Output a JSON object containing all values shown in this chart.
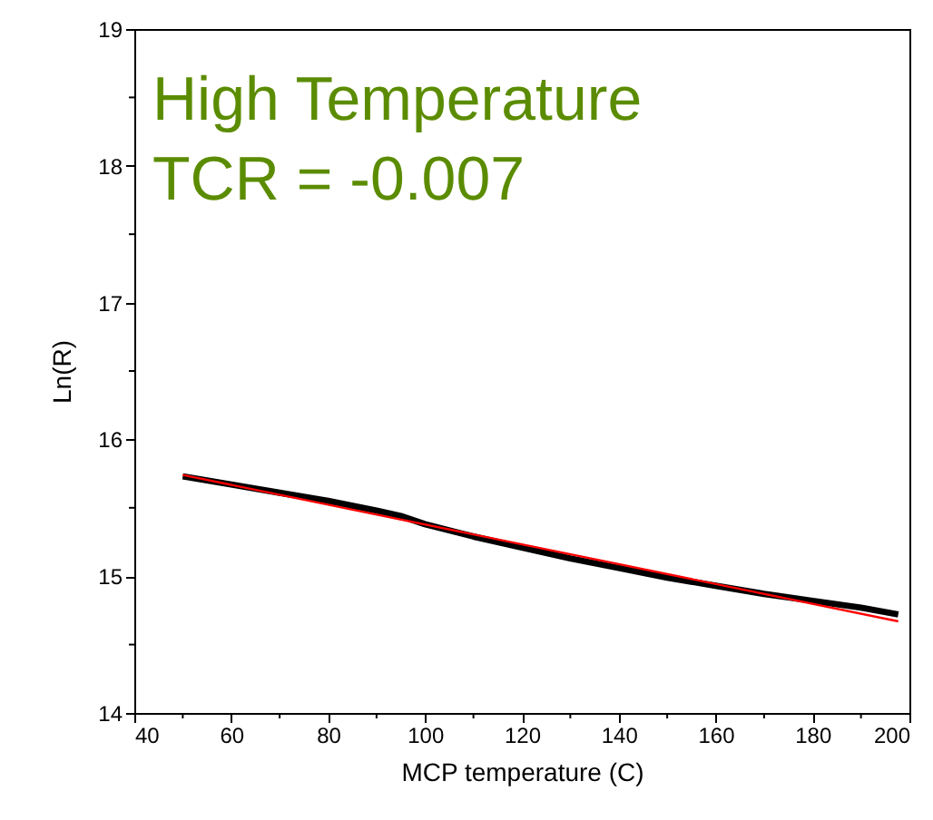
{
  "chart_data": {
    "type": "line",
    "xlabel": "MCP temperature (C)",
    "ylabel": "Ln(R)",
    "annotations": [
      "High Temperature",
      "TCR = -0.007"
    ],
    "xlim": [
      40,
      200
    ],
    "xticks": [
      40,
      {
        "value": 50,
        "label": null
      },
      60,
      {
        "value": 70,
        "label": null
      },
      80,
      {
        "value": 90,
        "label": null
      },
      100,
      {
        "value": 110,
        "label": null
      },
      120,
      {
        "value": 130,
        "label": null
      },
      140,
      {
        "value": 150,
        "label": null
      },
      160,
      {
        "value": 170,
        "label": null
      },
      180,
      {
        "value": 190,
        "label": null
      },
      200
    ],
    "ylim": [
      14,
      19
    ],
    "yticks": [
      14,
      {
        "value": 14.5,
        "label": null
      },
      15,
      {
        "value": 15.5,
        "label": null
      },
      16,
      {
        "value": 16.5,
        "label": null
      },
      17,
      {
        "value": 17.5,
        "label": null
      },
      18,
      {
        "value": 18.5,
        "label": null
      },
      19
    ],
    "grid": false,
    "series": [
      {
        "color": "#000000",
        "x": [
          50,
          60,
          70,
          80,
          90,
          95,
          100,
          110,
          120,
          130,
          140,
          150,
          160,
          170,
          180,
          190,
          197.7
        ],
        "values": [
          15.73,
          15.67,
          15.61,
          15.55,
          15.48,
          15.44,
          15.38,
          15.29,
          15.21,
          15.13,
          15.06,
          14.99,
          14.93,
          14.87,
          14.82,
          14.77,
          14.72
        ]
      },
      {
        "color": "#ff0000",
        "x": [
          50,
          197.7
        ],
        "values": [
          15.74,
          14.67
        ]
      }
    ]
  }
}
